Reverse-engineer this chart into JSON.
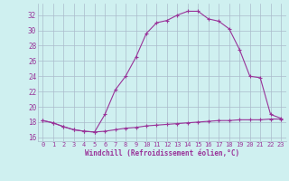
{
  "xlabel": "Windchill (Refroidissement éolien,°C)",
  "background_color": "#cff0f0",
  "grid_color": "#aabbcc",
  "line_color": "#993399",
  "xlim": [
    -0.5,
    23.5
  ],
  "ylim": [
    15.5,
    33.5
  ],
  "yticks": [
    16,
    18,
    20,
    22,
    24,
    26,
    28,
    30,
    32
  ],
  "xticks": [
    0,
    1,
    2,
    3,
    4,
    5,
    6,
    7,
    8,
    9,
    10,
    11,
    12,
    13,
    14,
    15,
    16,
    17,
    18,
    19,
    20,
    21,
    22,
    23
  ],
  "curve1_x": [
    0,
    1,
    2,
    3,
    4,
    5,
    6,
    7,
    8,
    9,
    10,
    11,
    12,
    13,
    14,
    15,
    16,
    17,
    18,
    19,
    20,
    21,
    22,
    23
  ],
  "curve1_y": [
    18.2,
    17.9,
    17.4,
    17.0,
    16.8,
    16.7,
    16.8,
    17.0,
    17.2,
    17.3,
    17.5,
    17.6,
    17.7,
    17.8,
    17.9,
    18.0,
    18.1,
    18.2,
    18.2,
    18.3,
    18.3,
    18.3,
    18.4,
    18.4
  ],
  "curve2_x": [
    0,
    1,
    2,
    3,
    4,
    5,
    6,
    7,
    8,
    9,
    10,
    11,
    12,
    13,
    14,
    15,
    16,
    17,
    18,
    19,
    20,
    21,
    22,
    23
  ],
  "curve2_y": [
    18.2,
    17.9,
    17.4,
    17.0,
    16.8,
    16.7,
    19.0,
    22.2,
    24.0,
    26.5,
    29.6,
    31.0,
    31.3,
    32.0,
    32.5,
    32.5,
    31.5,
    31.2,
    30.2,
    27.5,
    24.0,
    23.8,
    19.0,
    18.5
  ]
}
